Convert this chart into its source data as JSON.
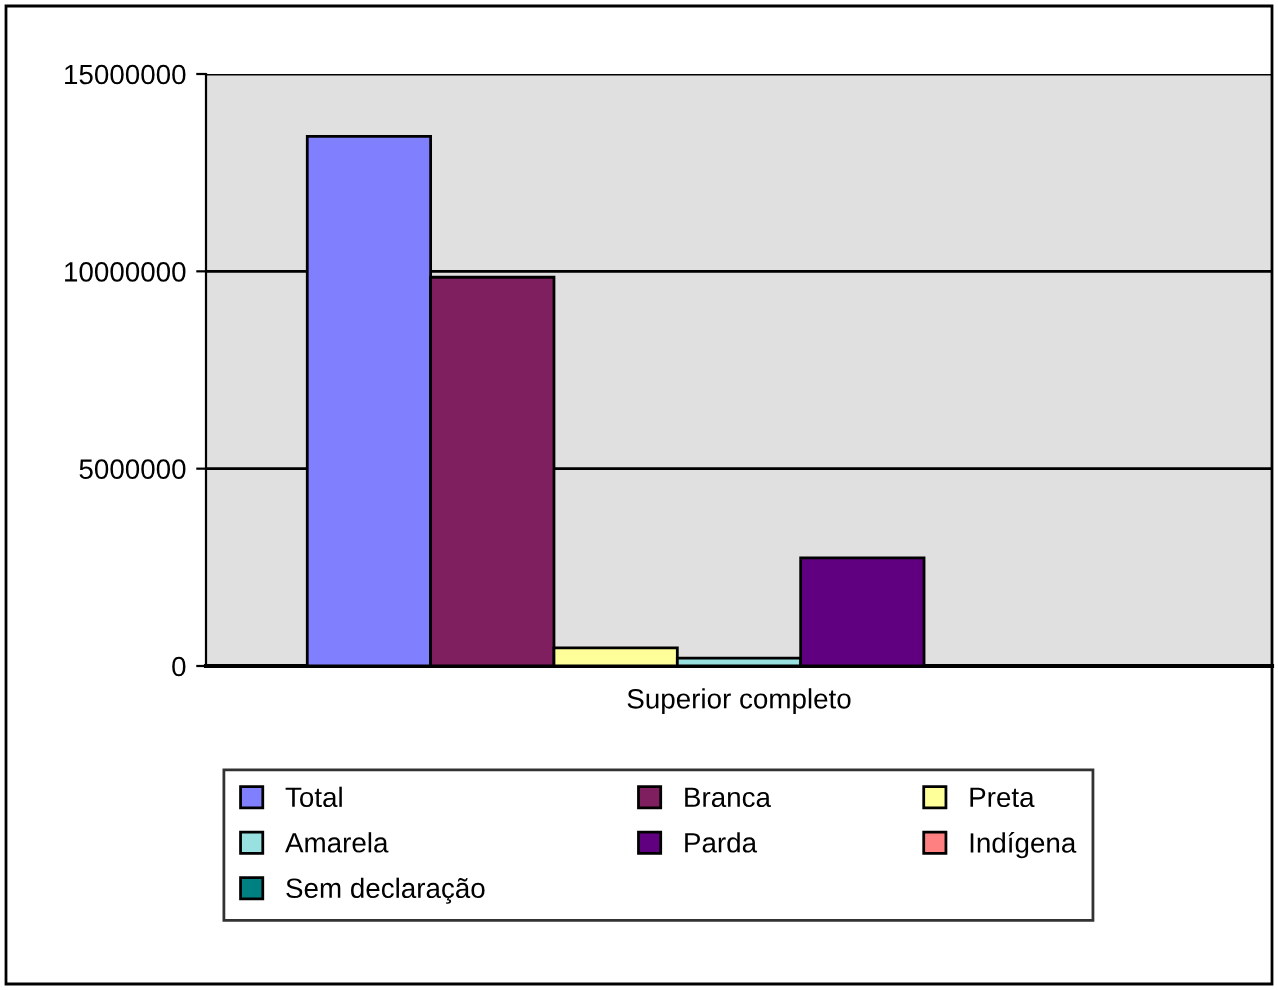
{
  "chart_data": {
    "type": "bar",
    "categories": [
      "Superior completo"
    ],
    "series": [
      {
        "name": "Total",
        "color": "#8080ff",
        "values": [
          13420000
        ]
      },
      {
        "name": "Branca",
        "color": "#7f1f5f",
        "values": [
          9850000
        ]
      },
      {
        "name": "Preta",
        "color": "#ffff99",
        "values": [
          460000
        ]
      },
      {
        "name": "Amarela",
        "color": "#99e0e0",
        "values": [
          200000
        ]
      },
      {
        "name": "Parda",
        "color": "#600080",
        "values": [
          2740000
        ]
      },
      {
        "name": "Indígena",
        "color": "#ff8080",
        "values": [
          null
        ]
      },
      {
        "name": "Sem declaração",
        "color": "#008080",
        "values": [
          null
        ]
      }
    ],
    "ylim": [
      0,
      15000000
    ],
    "yticks": [
      0,
      5000000,
      10000000,
      15000000
    ],
    "grid": "y",
    "legend": "bottom"
  }
}
